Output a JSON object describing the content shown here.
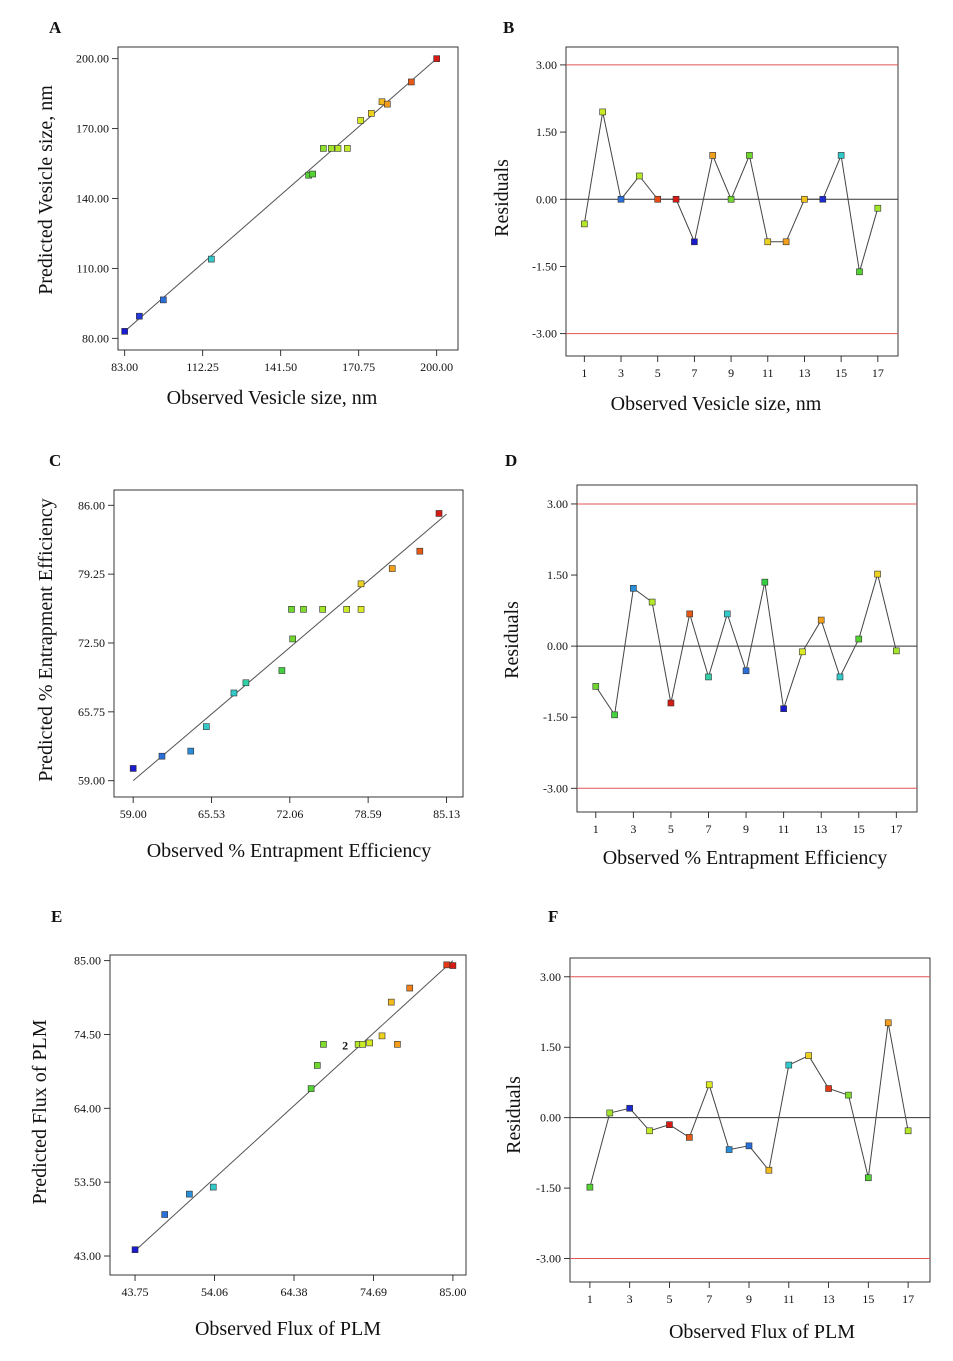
{
  "chart_data": [
    {
      "type": "scatter",
      "panel": "A",
      "xlabel": "Observed Vesicle size, nm",
      "ylabel": "Predicted Vesicle size, nm",
      "xlim": [
        80.5,
        208
      ],
      "ylim": [
        75,
        205
      ],
      "xticks": [
        "83.00",
        "112.25",
        "141.50",
        "170.75",
        "200.00"
      ],
      "yticks": [
        "80.00",
        "110.00",
        "140.00",
        "170.00",
        "200.00"
      ],
      "fit_line": [
        [
          83,
          83
        ],
        [
          200,
          200
        ]
      ],
      "points": [
        {
          "x": 83,
          "y": 83,
          "color": "#1a1acf"
        },
        {
          "x": 88.5,
          "y": 89.5,
          "color": "#2438d8"
        },
        {
          "x": 97.5,
          "y": 96.5,
          "color": "#2a6ed8"
        },
        {
          "x": 115.5,
          "y": 114,
          "color": "#33c9c9"
        },
        {
          "x": 152,
          "y": 150,
          "color": "#55d233"
        },
        {
          "x": 153.5,
          "y": 150.5,
          "color": "#55d233"
        },
        {
          "x": 157.5,
          "y": 161.5,
          "color": "#8fe02e"
        },
        {
          "x": 160.5,
          "y": 161.5,
          "color": "#a2e52a"
        },
        {
          "x": 163,
          "y": 161.5,
          "color": "#b7e828"
        },
        {
          "x": 166.5,
          "y": 161.5,
          "color": "#c2ea27"
        },
        {
          "x": 171.5,
          "y": 173.5,
          "color": "#d6ea23"
        },
        {
          "x": 175.5,
          "y": 176.5,
          "color": "#ecd21e"
        },
        {
          "x": 179.5,
          "y": 181.5,
          "color": "#f2b91b"
        },
        {
          "x": 181.5,
          "y": 180.5,
          "color": "#f29c1a"
        },
        {
          "x": 190.5,
          "y": 190,
          "color": "#e65a18"
        },
        {
          "x": 200,
          "y": 200,
          "color": "#d61a14"
        }
      ]
    },
    {
      "type": "line",
      "panel": "B",
      "xlabel": "Observed Vesicle size, nm",
      "ylabel": "Residuals",
      "xlim": [
        0,
        18.1
      ],
      "ylim": [
        -3.5,
        3.4
      ],
      "xticks": [
        "1",
        "3",
        "5",
        "7",
        "9",
        "11",
        "13",
        "15",
        "17"
      ],
      "yticks": [
        "-3.00",
        "-1.50",
        "0.00",
        "1.50",
        "3.00"
      ],
      "limits": [
        3,
        -3
      ],
      "points": [
        {
          "x": 1,
          "y": -0.55,
          "color": "#b5e82a"
        },
        {
          "x": 2,
          "y": 1.95,
          "color": "#c8ea27"
        },
        {
          "x": 3,
          "y": 0,
          "color": "#2a6ed8"
        },
        {
          "x": 4,
          "y": 0.52,
          "color": "#b5e82a"
        },
        {
          "x": 5,
          "y": 0,
          "color": "#e64a16"
        },
        {
          "x": 6,
          "y": 0,
          "color": "#d61a14"
        },
        {
          "x": 7,
          "y": -0.95,
          "color": "#1a1acf"
        },
        {
          "x": 8,
          "y": 0.98,
          "color": "#f2a01b"
        },
        {
          "x": 9,
          "y": 0,
          "color": "#6fd630"
        },
        {
          "x": 10,
          "y": 0.98,
          "color": "#6fd630"
        },
        {
          "x": 11,
          "y": -0.95,
          "color": "#ecd21e"
        },
        {
          "x": 12,
          "y": -0.95,
          "color": "#f2a01b"
        },
        {
          "x": 13,
          "y": 0,
          "color": "#f2c01b"
        },
        {
          "x": 14,
          "y": 0,
          "color": "#1a2ad0"
        },
        {
          "x": 15,
          "y": 0.98,
          "color": "#33c9c9"
        },
        {
          "x": 16,
          "y": -1.62,
          "color": "#55d233"
        },
        {
          "x": 17,
          "y": -0.2,
          "color": "#a2e52a"
        }
      ]
    },
    {
      "type": "scatter",
      "panel": "C",
      "xlabel": "Observed % Entrapment Efficiency",
      "ylabel": "Predicted % Entrapment Efficiency",
      "xlim": [
        57.4,
        86.5
      ],
      "ylim": [
        57.4,
        87.5
      ],
      "xticks": [
        "59.00",
        "65.53",
        "72.06",
        "78.59",
        "85.13"
      ],
      "yticks": [
        "59.00",
        "65.75",
        "72.50",
        "79.25",
        "86.00"
      ],
      "fit_line": [
        [
          59,
          59
        ],
        [
          85.13,
          85.13
        ]
      ],
      "points": [
        {
          "x": 59,
          "y": 60.2,
          "color": "#1a1acf"
        },
        {
          "x": 61.4,
          "y": 61.4,
          "color": "#2a6ed8"
        },
        {
          "x": 63.8,
          "y": 61.9,
          "color": "#2a8ed8"
        },
        {
          "x": 65.1,
          "y": 64.3,
          "color": "#33c9c9"
        },
        {
          "x": 67.4,
          "y": 67.6,
          "color": "#33c9c9"
        },
        {
          "x": 68.4,
          "y": 68.6,
          "color": "#33d0a8"
        },
        {
          "x": 71.4,
          "y": 69.8,
          "color": "#44d040"
        },
        {
          "x": 72.2,
          "y": 75.8,
          "color": "#6fd630"
        },
        {
          "x": 72.3,
          "y": 72.9,
          "color": "#6fd630"
        },
        {
          "x": 73.2,
          "y": 75.8,
          "color": "#7fdc2e"
        },
        {
          "x": 74.8,
          "y": 75.8,
          "color": "#a2e52a"
        },
        {
          "x": 76.8,
          "y": 75.8,
          "color": "#c8ea27"
        },
        {
          "x": 78.0,
          "y": 75.8,
          "color": "#dcea23"
        },
        {
          "x": 78.0,
          "y": 78.3,
          "color": "#ecd21e"
        },
        {
          "x": 80.6,
          "y": 79.8,
          "color": "#f2a01b"
        },
        {
          "x": 82.9,
          "y": 81.5,
          "color": "#e65a18"
        },
        {
          "x": 84.5,
          "y": 85.2,
          "color": "#d61a14"
        }
      ]
    },
    {
      "type": "line",
      "panel": "D",
      "xlabel": "Observed % Entrapment Efficiency",
      "ylabel": "Residuals",
      "xlim": [
        0,
        18.1
      ],
      "ylim": [
        -3.5,
        3.4
      ],
      "xticks": [
        "1",
        "3",
        "5",
        "7",
        "9",
        "11",
        "13",
        "15",
        "17"
      ],
      "yticks": [
        "-3.00",
        "-1.50",
        "0.00",
        "1.50",
        "3.00"
      ],
      "limits": [
        3,
        -3
      ],
      "points": [
        {
          "x": 1,
          "y": -0.85,
          "color": "#6fd630"
        },
        {
          "x": 2,
          "y": -1.45,
          "color": "#44d040"
        },
        {
          "x": 3,
          "y": 1.22,
          "color": "#2a8ed8"
        },
        {
          "x": 4,
          "y": 0.93,
          "color": "#b5e82a"
        },
        {
          "x": 5,
          "y": -1.2,
          "color": "#d61a14"
        },
        {
          "x": 6,
          "y": 0.68,
          "color": "#e65a18"
        },
        {
          "x": 7,
          "y": -0.65,
          "color": "#33d0a8"
        },
        {
          "x": 8,
          "y": 0.68,
          "color": "#33c9c9"
        },
        {
          "x": 9,
          "y": -0.52,
          "color": "#2a6ed8"
        },
        {
          "x": 10,
          "y": 1.35,
          "color": "#33d040"
        },
        {
          "x": 11,
          "y": -1.32,
          "color": "#1a1acf"
        },
        {
          "x": 12,
          "y": -0.12,
          "color": "#dcea23"
        },
        {
          "x": 13,
          "y": 0.55,
          "color": "#f2a01b"
        },
        {
          "x": 14,
          "y": -0.65,
          "color": "#33c9c9"
        },
        {
          "x": 15,
          "y": 0.15,
          "color": "#55d233"
        },
        {
          "x": 16,
          "y": 1.52,
          "color": "#ecd21e"
        },
        {
          "x": 17,
          "y": -0.1,
          "color": "#a2e52a"
        }
      ]
    },
    {
      "type": "scatter",
      "panel": "E",
      "xlabel": "Observed Flux of PLM",
      "ylabel": "Predicted Flux of PLM",
      "xlim": [
        40.5,
        86.7
      ],
      "ylim": [
        40.3,
        85.8
      ],
      "xticks": [
        "43.75",
        "54.06",
        "64.38",
        "74.69",
        "85.00"
      ],
      "yticks": [
        "43.00",
        "53.50",
        "64.00",
        "74.50",
        "85.00"
      ],
      "fit_line": [
        [
          43.75,
          43.75
        ],
        [
          85,
          85
        ]
      ],
      "annotation": {
        "text": "2",
        "x": 71.4,
        "y": 72.9
      },
      "points": [
        {
          "x": 43.75,
          "y": 43.9,
          "color": "#1a1acf"
        },
        {
          "x": 47.6,
          "y": 48.9,
          "color": "#2a6ed8"
        },
        {
          "x": 50.8,
          "y": 51.8,
          "color": "#2a8ed8"
        },
        {
          "x": 53.9,
          "y": 52.8,
          "color": "#33c9c9"
        },
        {
          "x": 66.6,
          "y": 66.8,
          "color": "#55d233"
        },
        {
          "x": 67.4,
          "y": 70.1,
          "color": "#6fd630"
        },
        {
          "x": 68.2,
          "y": 73.1,
          "color": "#7fdc2e"
        },
        {
          "x": 72.7,
          "y": 73.1,
          "color": "#b5e82a"
        },
        {
          "x": 73.3,
          "y": 73.1,
          "color": "#c8ea27"
        },
        {
          "x": 74.2,
          "y": 73.3,
          "color": "#d6ea23"
        },
        {
          "x": 75.8,
          "y": 74.3,
          "color": "#ecd21e"
        },
        {
          "x": 77.0,
          "y": 79.1,
          "color": "#f2b91b"
        },
        {
          "x": 77.8,
          "y": 73.1,
          "color": "#f29c1a"
        },
        {
          "x": 79.4,
          "y": 81.1,
          "color": "#f2801a"
        },
        {
          "x": 84.2,
          "y": 84.4,
          "color": "#e63a16"
        },
        {
          "x": 85.0,
          "y": 84.3,
          "color": "#d61a14"
        }
      ]
    },
    {
      "type": "line",
      "panel": "F",
      "xlabel": "Observed Flux of PLM",
      "ylabel": "Residuals",
      "xlim": [
        0,
        18.1
      ],
      "ylim": [
        -3.5,
        3.4
      ],
      "xticks": [
        "1",
        "3",
        "5",
        "7",
        "9",
        "11",
        "13",
        "15",
        "17"
      ],
      "yticks": [
        "-3.00",
        "-1.50",
        "0.00",
        "1.50",
        "3.00"
      ],
      "limits": [
        3,
        -3
      ],
      "points": [
        {
          "x": 1,
          "y": -1.48,
          "color": "#55d233"
        },
        {
          "x": 2,
          "y": 0.1,
          "color": "#a2e52a"
        },
        {
          "x": 3,
          "y": 0.2,
          "color": "#1a2ad0"
        },
        {
          "x": 4,
          "y": -0.28,
          "color": "#c2ea27"
        },
        {
          "x": 5,
          "y": -0.15,
          "color": "#d61a14"
        },
        {
          "x": 6,
          "y": -0.42,
          "color": "#e65a18"
        },
        {
          "x": 7,
          "y": 0.7,
          "color": "#dcea23"
        },
        {
          "x": 8,
          "y": -0.68,
          "color": "#2a8ed8"
        },
        {
          "x": 9,
          "y": -0.6,
          "color": "#2a6ed8"
        },
        {
          "x": 10,
          "y": -1.12,
          "color": "#f2b91b"
        },
        {
          "x": 11,
          "y": 1.12,
          "color": "#33c9c9"
        },
        {
          "x": 12,
          "y": 1.32,
          "color": "#ecd21e"
        },
        {
          "x": 13,
          "y": 0.62,
          "color": "#e63a16"
        },
        {
          "x": 14,
          "y": 0.48,
          "color": "#7fdc2e"
        },
        {
          "x": 15,
          "y": -1.28,
          "color": "#55d233"
        },
        {
          "x": 16,
          "y": 2.02,
          "color": "#f2a01b"
        },
        {
          "x": 17,
          "y": -0.28,
          "color": "#b5e82a"
        }
      ]
    }
  ]
}
